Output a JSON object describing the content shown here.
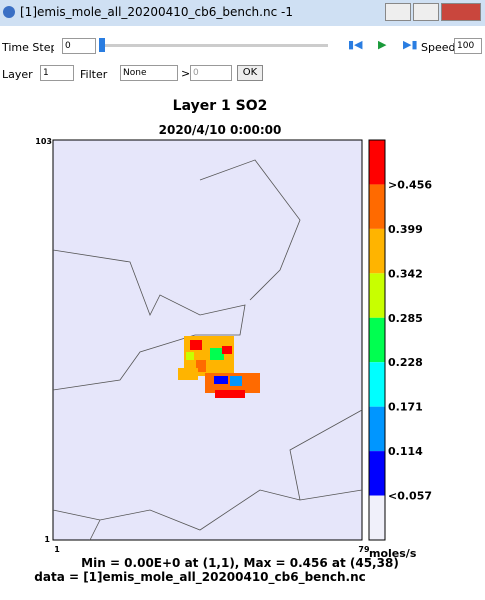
{
  "window": {
    "title": "[1]emis_mole_all_20200410_cb6_bench.nc -1"
  },
  "controls": {
    "time_step_label": "Time Step",
    "time_step_value": "0",
    "speed_label": "Speed",
    "speed_value": "100",
    "layer_label": "Layer",
    "layer_value": "1",
    "filter_label": "Filter",
    "filter_value": "None",
    "filter_op": ">",
    "filter_threshold": "0",
    "ok_button": "OK"
  },
  "plot": {
    "title": "Layer 1 SO2",
    "subtitle": "2020/4/10 0:00:00",
    "y_top": "103",
    "y_bottom": "1",
    "x_left": "1",
    "x_right": "79",
    "units": "moles/s",
    "stats": "Min = 0.00E+0 at (1,1), Max = 0.456 at (45,38)",
    "source": "data = [1]emis_mole_all_20200410_cb6_bench.nc"
  },
  "colorbar": {
    "colors": [
      "#ff0000",
      "#ff6a00",
      "#ffb400",
      "#c8ff00",
      "#00ff50",
      "#00ffff",
      "#0096ff",
      "#0000ff",
      "#f0f0fa"
    ],
    "labels": [
      ">0.456",
      "0.399",
      "0.342",
      "0.285",
      "0.228",
      "0.171",
      "0.114",
      "<0.057"
    ]
  }
}
